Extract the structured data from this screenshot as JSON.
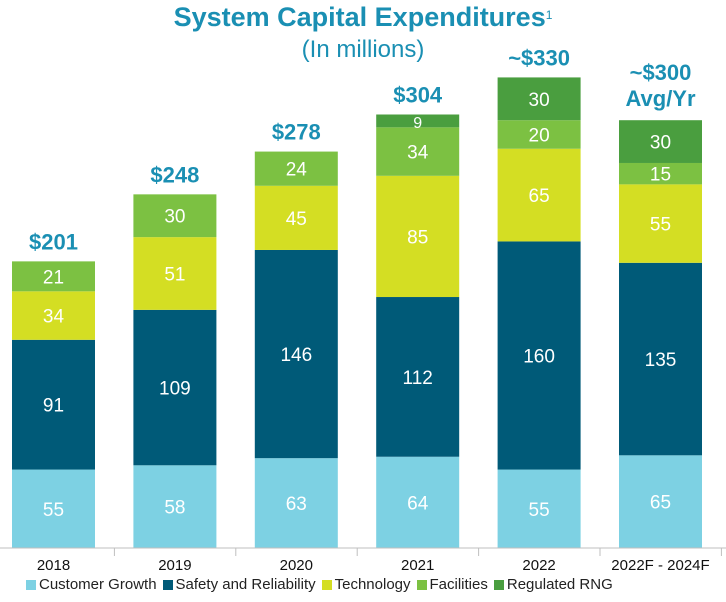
{
  "chart_data": {
    "type": "bar",
    "stacked": true,
    "title": "System Capital Expenditures",
    "title_footnote": "1",
    "subtitle": "(In millions)",
    "categories": [
      "2018",
      "2019",
      "2020",
      "2021",
      "2022",
      "2022F - 2024F"
    ],
    "totals": [
      "$201",
      "$248",
      "$278",
      "$304",
      "~$330",
      "~$300 Avg/Yr"
    ],
    "series": [
      {
        "name": "Customer Growth",
        "color": "#7dd1e3",
        "values": [
          55,
          58,
          63,
          64,
          55,
          65
        ]
      },
      {
        "name": "Safety and Reliability",
        "color": "#005a78",
        "values": [
          91,
          109,
          146,
          112,
          160,
          135
        ]
      },
      {
        "name": "Technology",
        "color": "#d4de23",
        "values": [
          34,
          51,
          45,
          85,
          65,
          55
        ]
      },
      {
        "name": "Facilities",
        "color": "#7cc142",
        "values": [
          21,
          30,
          24,
          34,
          20,
          15
        ]
      },
      {
        "name": "Regulated RNG",
        "color": "#4a9e3f",
        "values": [
          0,
          0,
          0,
          9,
          30,
          30
        ]
      }
    ],
    "ylim": [
      0,
      330
    ],
    "legend_position": "bottom",
    "grid": false
  }
}
